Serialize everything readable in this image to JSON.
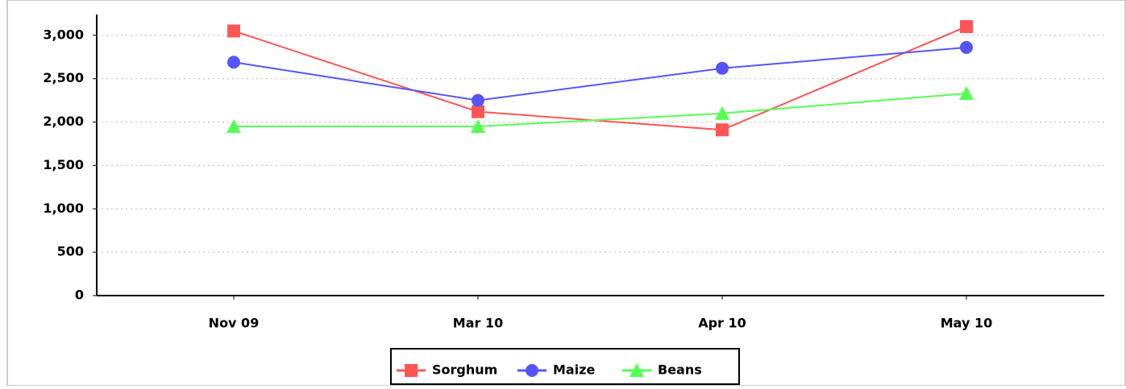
{
  "chart_data": {
    "type": "line",
    "categories": [
      "Nov 09",
      "Mar 10",
      "Apr 10",
      "May 10"
    ],
    "series": [
      {
        "name": "Sorghum",
        "color": "#ff5555",
        "marker": "square",
        "values": [
          3050,
          2120,
          1910,
          3100
        ]
      },
      {
        "name": "Maize",
        "color": "#5555ff",
        "marker": "circle",
        "values": [
          2690,
          2250,
          2620,
          2860
        ]
      },
      {
        "name": "Beans",
        "color": "#55ff55",
        "marker": "triangle",
        "values": [
          1950,
          1950,
          2100,
          2330
        ]
      }
    ],
    "ylim": [
      0,
      3240
    ],
    "yticks": [
      0,
      500,
      {
        "value": 1000,
        "label": "1,000"
      },
      {
        "value": 1500,
        "label": "1,500"
      },
      {
        "value": 2000,
        "label": "2,000"
      },
      {
        "value": 2500,
        "label": "2,500"
      },
      {
        "value": 3000,
        "label": "3,000"
      }
    ],
    "grid": true
  }
}
